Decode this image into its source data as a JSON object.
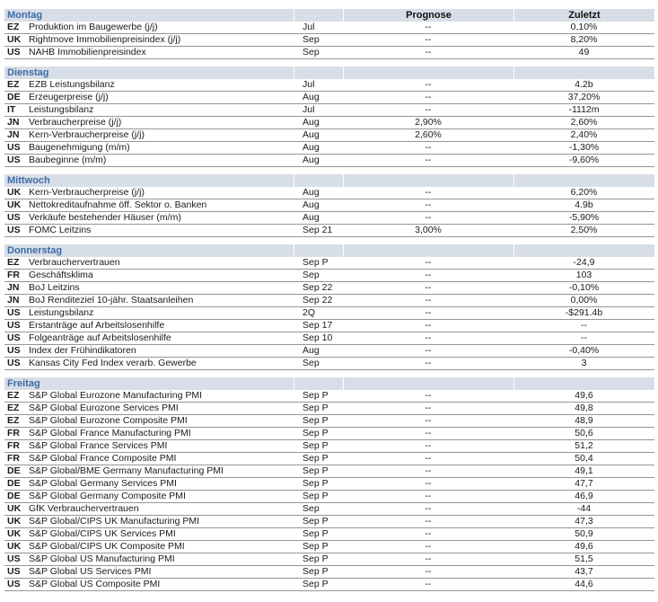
{
  "table": {
    "colors": {
      "band_bg": "#d7dee7",
      "day_text": "#3d6ba6",
      "row_line": "#969696",
      "text": "#1a1a1a"
    },
    "headers": {
      "prognose": "Prognose",
      "zuletzt": "Zuletzt"
    },
    "sections": [
      {
        "day": "Montag",
        "show_headers": true,
        "rows": [
          {
            "country": "EZ",
            "event": "Produktion im Baugewerbe (j/j)",
            "period": "Jul",
            "prognose": "--",
            "zuletzt": "0,10%"
          },
          {
            "country": "UK",
            "event": "Rightmove Immobilienpreisindex (j/j)",
            "period": "Sep",
            "prognose": "--",
            "zuletzt": "8,20%"
          },
          {
            "country": "US",
            "event": "NAHB Immobilienpreisindex",
            "period": "Sep",
            "prognose": "--",
            "zuletzt": "49"
          }
        ]
      },
      {
        "day": "Dienstag",
        "show_headers": false,
        "rows": [
          {
            "country": "EZ",
            "event": "EZB Leistungsbilanz",
            "period": "Jul",
            "prognose": "--",
            "zuletzt": "4.2b"
          },
          {
            "country": "DE",
            "event": "Erzeugerpreise (j/j)",
            "period": "Aug",
            "prognose": "--",
            "zuletzt": "37,20%"
          },
          {
            "country": "IT",
            "event": "Leistungsbilanz",
            "period": "Jul",
            "prognose": "--",
            "zuletzt": "-1112m"
          },
          {
            "country": "JN",
            "event": "Verbraucherpreise (j/j)",
            "period": "Aug",
            "prognose": "2,90%",
            "zuletzt": "2,60%"
          },
          {
            "country": "JN",
            "event": "Kern-Verbraucherpreise (j/j)",
            "period": "Aug",
            "prognose": "2,60%",
            "zuletzt": "2,40%"
          },
          {
            "country": "US",
            "event": "Baugenehmigung (m/m)",
            "period": "Aug",
            "prognose": "--",
            "zuletzt": "-1,30%"
          },
          {
            "country": "US",
            "event": "Baubeginne (m/m)",
            "period": "Aug",
            "prognose": "--",
            "zuletzt": "-9,60%"
          }
        ]
      },
      {
        "day": "Mittwoch",
        "show_headers": false,
        "rows": [
          {
            "country": "UK",
            "event": "Kern-Verbraucherpreise (j/j)",
            "period": "Aug",
            "prognose": "--",
            "zuletzt": "6,20%"
          },
          {
            "country": "UK",
            "event": "Nettokreditaufnahme öff. Sektor o. Banken",
            "period": "Aug",
            "prognose": "--",
            "zuletzt": "4.9b"
          },
          {
            "country": "US",
            "event": "Verkäufe bestehender Häuser (m/m)",
            "period": "Aug",
            "prognose": "--",
            "zuletzt": "-5,90%"
          },
          {
            "country": "US",
            "event": "FOMC Leitzins",
            "period": "Sep 21",
            "prognose": "3,00%",
            "zuletzt": "2,50%"
          }
        ]
      },
      {
        "day": "Donnerstag",
        "show_headers": false,
        "rows": [
          {
            "country": "EZ",
            "event": "Verbrauchervertrauen",
            "period": "Sep P",
            "prognose": "--",
            "zuletzt": "-24,9"
          },
          {
            "country": "FR",
            "event": "Geschäftsklima",
            "period": "Sep",
            "prognose": "--",
            "zuletzt": "103"
          },
          {
            "country": "JN",
            "event": "BoJ Leitzins",
            "period": "Sep 22",
            "prognose": "--",
            "zuletzt": "-0,10%"
          },
          {
            "country": "JN",
            "event": "BoJ Renditeziel 10-jähr. Staatsanleihen",
            "period": "Sep 22",
            "prognose": "--",
            "zuletzt": "0,00%"
          },
          {
            "country": "US",
            "event": "Leistungsbilanz",
            "period": "2Q",
            "prognose": "--",
            "zuletzt": "-$291.4b"
          },
          {
            "country": "US",
            "event": "Erstanträge auf Arbeitslosenhilfe",
            "period": "Sep 17",
            "prognose": "--",
            "zuletzt": "--"
          },
          {
            "country": "US",
            "event": "Folgeanträge auf Arbeitslosenhilfe",
            "period": "Sep 10",
            "prognose": "--",
            "zuletzt": "--"
          },
          {
            "country": "US",
            "event": "Index der Frühindikatoren",
            "period": "Aug",
            "prognose": "--",
            "zuletzt": "-0,40%"
          },
          {
            "country": "US",
            "event": "Kansas City Fed Index verarb. Gewerbe",
            "period": "Sep",
            "prognose": "--",
            "zuletzt": "3"
          }
        ]
      },
      {
        "day": "Freitag",
        "show_headers": false,
        "rows": [
          {
            "country": "EZ",
            "event": "S&P Global Eurozone Manufacturing PMI",
            "period": "Sep P",
            "prognose": "--",
            "zuletzt": "49,6"
          },
          {
            "country": "EZ",
            "event": "S&P Global Eurozone Services PMI",
            "period": "Sep P",
            "prognose": "--",
            "zuletzt": "49,8"
          },
          {
            "country": "EZ",
            "event": "S&P Global Eurozone Composite PMI",
            "period": "Sep P",
            "prognose": "--",
            "zuletzt": "48,9"
          },
          {
            "country": "FR",
            "event": "S&P Global France Manufacturing PMI",
            "period": "Sep P",
            "prognose": "--",
            "zuletzt": "50,6"
          },
          {
            "country": "FR",
            "event": "S&P Global France Services PMI",
            "period": "Sep P",
            "prognose": "--",
            "zuletzt": "51,2"
          },
          {
            "country": "FR",
            "event": "S&P Global France Composite PMI",
            "period": "Sep P",
            "prognose": "--",
            "zuletzt": "50,4"
          },
          {
            "country": "DE",
            "event": "S&P Global/BME Germany Manufacturing PMI",
            "period": "Sep P",
            "prognose": "--",
            "zuletzt": "49,1"
          },
          {
            "country": "DE",
            "event": "S&P Global Germany Services PMI",
            "period": "Sep P",
            "prognose": "--",
            "zuletzt": "47,7"
          },
          {
            "country": "DE",
            "event": "S&P Global Germany Composite PMI",
            "period": "Sep P",
            "prognose": "--",
            "zuletzt": "46,9"
          },
          {
            "country": "UK",
            "event": "GfK Verbrauchervertrauen",
            "period": "Sep",
            "prognose": "--",
            "zuletzt": "-44"
          },
          {
            "country": "UK",
            "event": "S&P Global/CIPS UK Manufacturing PMI",
            "period": "Sep P",
            "prognose": "--",
            "zuletzt": "47,3"
          },
          {
            "country": "UK",
            "event": "S&P Global/CIPS UK Services PMI",
            "period": "Sep P",
            "prognose": "--",
            "zuletzt": "50,9"
          },
          {
            "country": "UK",
            "event": "S&P Global/CIPS UK Composite PMI",
            "period": "Sep P",
            "prognose": "--",
            "zuletzt": "49,6"
          },
          {
            "country": "US",
            "event": "S&P Global US Manufacturing PMI",
            "period": "Sep P",
            "prognose": "--",
            "zuletzt": "51,5"
          },
          {
            "country": "US",
            "event": "S&P Global US Services PMI",
            "period": "Sep P",
            "prognose": "--",
            "zuletzt": "43,7"
          },
          {
            "country": "US",
            "event": "S&P Global US Composite PMI",
            "period": "Sep P",
            "prognose": "--",
            "zuletzt": "44,6"
          }
        ]
      }
    ]
  }
}
